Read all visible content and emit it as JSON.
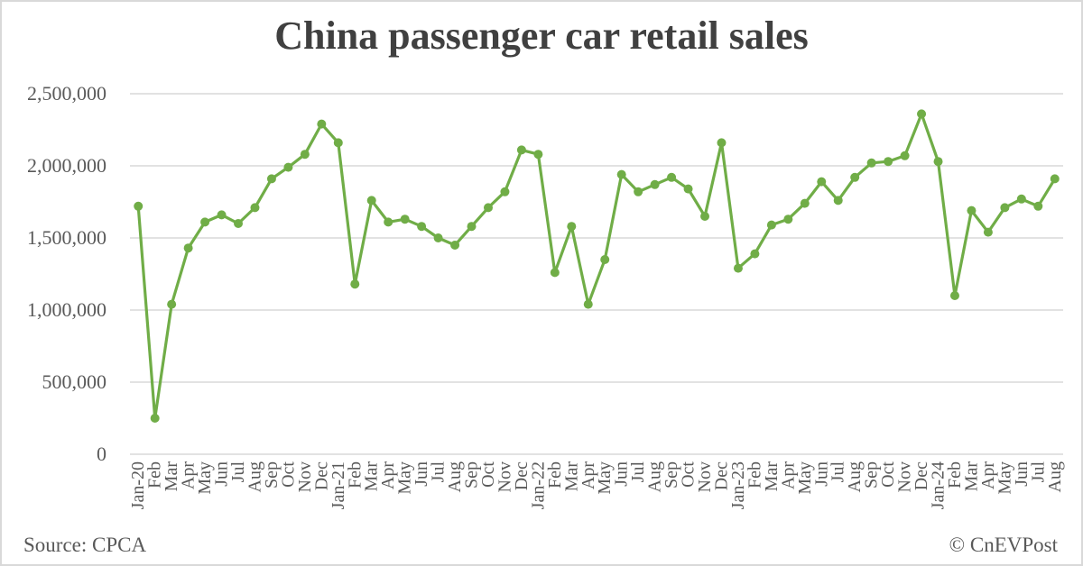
{
  "title": "China passenger car retail sales",
  "footer": {
    "source": "Source: CPCA",
    "credit": "© CnEVPost"
  },
  "colors": {
    "line": "#70ad47",
    "marker": "#70ad47",
    "grid": "#d9d9d9",
    "title": "#404040",
    "text": "#595959"
  },
  "chart_data": {
    "type": "line",
    "title": "China passenger car retail sales",
    "xlabel": "",
    "ylabel": "",
    "ylim": [
      0,
      2500000
    ],
    "yticks": [
      0,
      500000,
      1000000,
      1500000,
      2000000,
      2500000
    ],
    "ytick_labels": [
      "0",
      "500,000",
      "1,000,000",
      "1,500,000",
      "2,000,000",
      "2,500,000"
    ],
    "grid": true,
    "legend": "none",
    "categories": [
      "Jan-20",
      "Feb",
      "Mar",
      "Apr",
      "May",
      "Jun",
      "Jul",
      "Aug",
      "Sep",
      "Oct",
      "Nov",
      "Dec",
      "Jan-21",
      "Feb",
      "Mar",
      "Apr",
      "May",
      "Jun",
      "Jul",
      "Aug",
      "Sep",
      "Oct",
      "Nov",
      "Dec",
      "Jan-22",
      "Feb",
      "Mar",
      "Apr",
      "May",
      "Jun",
      "Jul",
      "Aug",
      "Sep",
      "Oct",
      "Nov",
      "Dec",
      "Jan-23",
      "Feb",
      "Mar",
      "Apr",
      "May",
      "Jun",
      "Jul",
      "Aug",
      "Sep",
      "Oct",
      "Nov",
      "Dec",
      "Jan-24",
      "Feb",
      "Mar",
      "Apr",
      "May",
      "Jun",
      "Jul",
      "Aug"
    ],
    "series": [
      {
        "name": "Retail sales",
        "values": [
          1720000,
          250000,
          1040000,
          1430000,
          1610000,
          1660000,
          1600000,
          1710000,
          1910000,
          1990000,
          2080000,
          2290000,
          2160000,
          1180000,
          1760000,
          1610000,
          1630000,
          1580000,
          1500000,
          1450000,
          1580000,
          1710000,
          1820000,
          2110000,
          2080000,
          1260000,
          1580000,
          1040000,
          1350000,
          1940000,
          1820000,
          1870000,
          1920000,
          1840000,
          1650000,
          2160000,
          1290000,
          1390000,
          1590000,
          1630000,
          1740000,
          1890000,
          1760000,
          1920000,
          2020000,
          2030000,
          2070000,
          2360000,
          2030000,
          1100000,
          1690000,
          1540000,
          1710000,
          1770000,
          1720000,
          1910000
        ]
      }
    ]
  }
}
